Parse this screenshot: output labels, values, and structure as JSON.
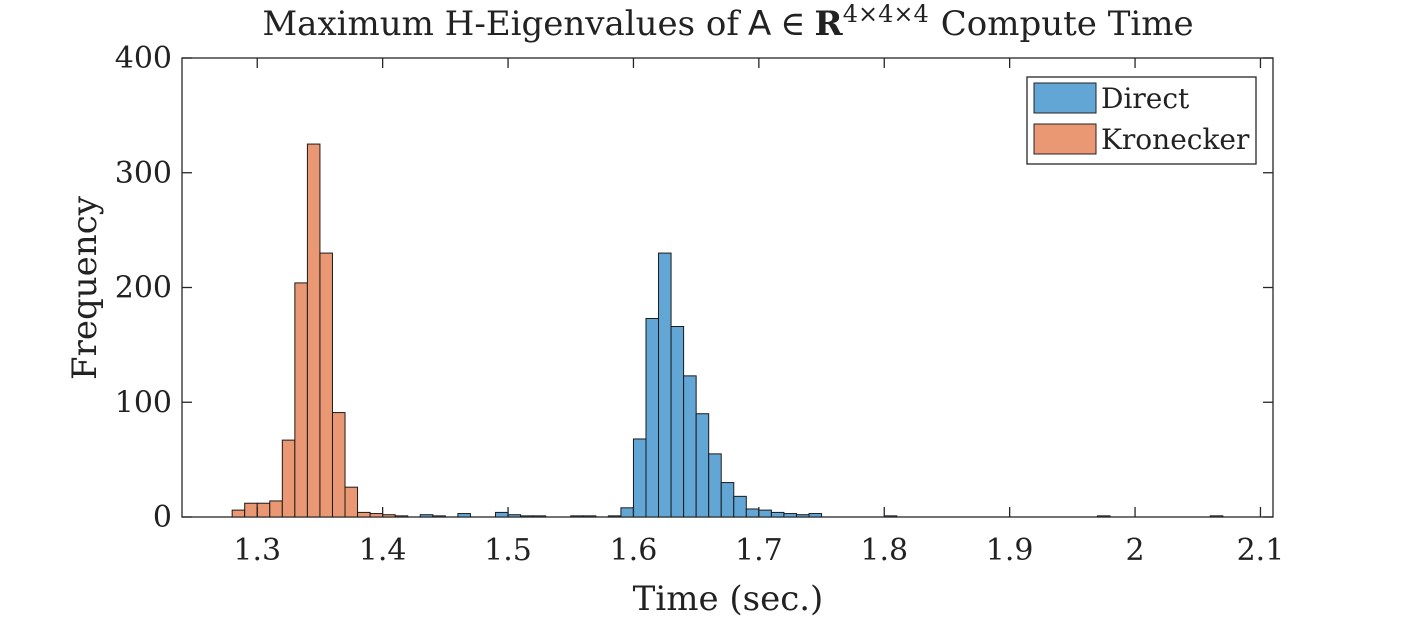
{
  "chart_data": {
    "type": "histogram",
    "title": {
      "prefix": "Maximum H-Eigenvalues of",
      "symbol": "A",
      "element_of": "∈",
      "set": "R",
      "superscript": "4×4×4",
      "suffix": "Compute Time"
    },
    "xlabel": "Time (sec.)",
    "ylabel": "Frequency",
    "xlim": [
      1.24,
      2.11
    ],
    "ylim": [
      0,
      400
    ],
    "xticks": [
      1.3,
      1.4,
      1.5,
      1.6,
      1.7,
      1.8,
      1.9,
      2.0,
      2.1
    ],
    "xtick_labels": [
      "1.3",
      "1.4",
      "1.5",
      "1.6",
      "1.7",
      "1.8",
      "1.9",
      "2",
      "2.1"
    ],
    "yticks": [
      0,
      100,
      200,
      300,
      400
    ],
    "ytick_labels": [
      "0",
      "100",
      "200",
      "300",
      "400"
    ],
    "bin_width": 0.01,
    "legend_position": "top-right",
    "series": [
      {
        "name": "Direct",
        "color": "#62a6d6",
        "bins": [
          {
            "start": 1.43,
            "count": 2
          },
          {
            "start": 1.44,
            "count": 1
          },
          {
            "start": 1.46,
            "count": 3
          },
          {
            "start": 1.49,
            "count": 4
          },
          {
            "start": 1.5,
            "count": 2
          },
          {
            "start": 1.51,
            "count": 1
          },
          {
            "start": 1.52,
            "count": 1
          },
          {
            "start": 1.55,
            "count": 1
          },
          {
            "start": 1.56,
            "count": 1
          },
          {
            "start": 1.58,
            "count": 1
          },
          {
            "start": 1.59,
            "count": 8
          },
          {
            "start": 1.6,
            "count": 68
          },
          {
            "start": 1.61,
            "count": 173
          },
          {
            "start": 1.62,
            "count": 230
          },
          {
            "start": 1.63,
            "count": 166
          },
          {
            "start": 1.64,
            "count": 123
          },
          {
            "start": 1.65,
            "count": 90
          },
          {
            "start": 1.66,
            "count": 55
          },
          {
            "start": 1.67,
            "count": 30
          },
          {
            "start": 1.68,
            "count": 18
          },
          {
            "start": 1.69,
            "count": 7
          },
          {
            "start": 1.7,
            "count": 6
          },
          {
            "start": 1.71,
            "count": 4
          },
          {
            "start": 1.72,
            "count": 3
          },
          {
            "start": 1.73,
            "count": 2
          },
          {
            "start": 1.74,
            "count": 3
          },
          {
            "start": 1.8,
            "count": 1
          },
          {
            "start": 1.97,
            "count": 1
          },
          {
            "start": 2.06,
            "count": 1
          }
        ]
      },
      {
        "name": "Kronecker",
        "color": "#e99873",
        "bins": [
          {
            "start": 1.28,
            "count": 6
          },
          {
            "start": 1.29,
            "count": 12
          },
          {
            "start": 1.3,
            "count": 12
          },
          {
            "start": 1.31,
            "count": 14
          },
          {
            "start": 1.32,
            "count": 67
          },
          {
            "start": 1.33,
            "count": 204
          },
          {
            "start": 1.34,
            "count": 325
          },
          {
            "start": 1.35,
            "count": 230
          },
          {
            "start": 1.36,
            "count": 91
          },
          {
            "start": 1.37,
            "count": 26
          },
          {
            "start": 1.38,
            "count": 4
          },
          {
            "start": 1.39,
            "count": 3
          },
          {
            "start": 1.4,
            "count": 2
          },
          {
            "start": 1.41,
            "count": 1
          }
        ]
      }
    ]
  }
}
